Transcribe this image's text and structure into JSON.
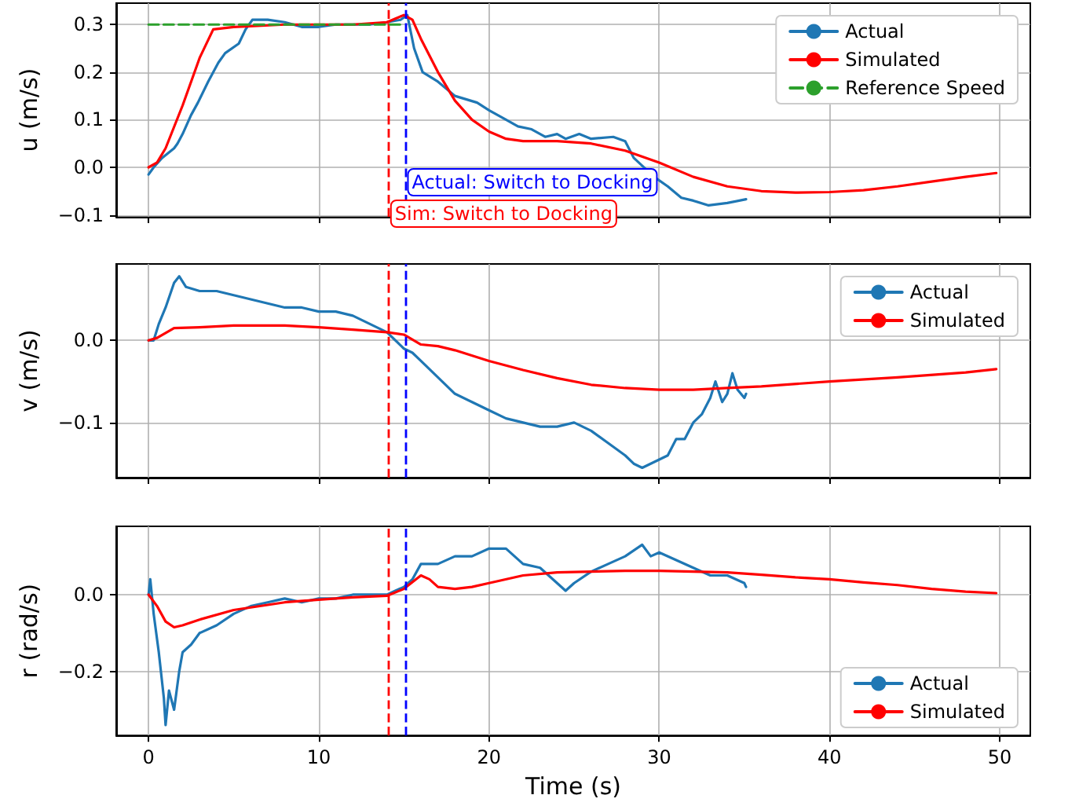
{
  "chart_data": [
    {
      "type": "line",
      "ylabel": "u (m/s)",
      "xlim": [
        -1.9,
        51.8
      ],
      "xticks": [
        0,
        10,
        20,
        30,
        40,
        50
      ],
      "ylim": [
        -0.104,
        0.345
      ],
      "yticks": [
        {
          "value": -0.1,
          "label": "−0.1"
        },
        {
          "value": 0,
          "label": "0.0"
        },
        {
          "value": 0.1,
          "label": "0.1"
        },
        {
          "value": 0.2,
          "label": "0.2"
        },
        {
          "value": 0.3,
          "label": "0.3"
        }
      ],
      "grid": true,
      "legend": "top right",
      "tick_labels": "y",
      "series": [
        {
          "name": "Actual",
          "color": "#1f77b4",
          "x": [
            0,
            0.3,
            0.8,
            1.5,
            1.7,
            2,
            2.5,
            2.9,
            3.5,
            4.1,
            4.5,
            5.3,
            5.7,
            6.1,
            7,
            8,
            9,
            10,
            11,
            12,
            13,
            14,
            14.8,
            15.2,
            15.6,
            16.1,
            17,
            18,
            19.3,
            20,
            21,
            21.7,
            22.5,
            23.3,
            24,
            24.5,
            25.3,
            26,
            27.3,
            28,
            28.5,
            29.7,
            30.5,
            31.3,
            32,
            32.9,
            34,
            35.1
          ],
          "values": [
            -0.015,
            0.0,
            0.02,
            0.04,
            0.05,
            0.07,
            0.11,
            0.136,
            0.18,
            0.22,
            0.24,
            0.26,
            0.29,
            0.31,
            0.31,
            0.305,
            0.295,
            0.295,
            0.3,
            0.3,
            0.3,
            0.305,
            0.31,
            0.32,
            0.25,
            0.2,
            0.18,
            0.15,
            0.136,
            0.12,
            0.1,
            0.086,
            0.08,
            0.064,
            0.07,
            0.06,
            0.07,
            0.06,
            0.064,
            0.055,
            0.02,
            -0.02,
            -0.04,
            -0.064,
            -0.07,
            -0.08,
            -0.075,
            -0.067
          ]
        },
        {
          "name": "Simulated",
          "color": "#ff0000",
          "x": [
            0,
            0.5,
            1,
            2,
            3,
            3.8,
            5,
            8,
            12,
            14,
            15,
            15.5,
            16,
            17,
            18,
            19,
            20,
            21,
            22,
            24,
            26,
            28,
            30,
            32,
            34,
            36,
            38,
            40,
            42,
            44,
            46,
            48,
            49.8
          ],
          "values": [
            0,
            0.01,
            0.04,
            0.13,
            0.23,
            0.29,
            0.295,
            0.3,
            0.3,
            0.305,
            0.32,
            0.31,
            0.27,
            0.2,
            0.14,
            0.1,
            0.075,
            0.06,
            0.055,
            0.055,
            0.05,
            0.035,
            0.01,
            -0.02,
            -0.04,
            -0.05,
            -0.053,
            -0.052,
            -0.048,
            -0.04,
            -0.03,
            -0.02,
            -0.012
          ]
        },
        {
          "name": "Reference Speed",
          "color": "#2ca02c",
          "line_style": "dashed",
          "x": [
            0,
            15
          ],
          "values": [
            0.3,
            0.3
          ]
        }
      ],
      "ref_lines": [
        {
          "axis": "x",
          "value": 14.1,
          "label": "Sim: Switch to Docking",
          "color": "#ff0000",
          "line_style": "dashed"
        },
        {
          "axis": "x",
          "value": 15.1,
          "label": "Actual: Switch to Docking",
          "color": "#0000ff",
          "line_style": "dashed"
        }
      ]
    },
    {
      "type": "line",
      "ylabel": "v (m/s)",
      "xlim": [
        -1.9,
        51.8
      ],
      "xticks": [
        0,
        10,
        20,
        30,
        40,
        50
      ],
      "ylim": [
        -0.167,
        0.093
      ],
      "yticks": [
        {
          "value": -0.1,
          "label": "−0.1"
        },
        {
          "value": 0,
          "label": "0.0"
        }
      ],
      "grid": true,
      "legend": "top right",
      "tick_labels": "y",
      "series": [
        {
          "name": "Actual",
          "color": "#1f77b4",
          "x": [
            0,
            0.3,
            0.6,
            1,
            1.5,
            1.8,
            2.2,
            3,
            4,
            5,
            6,
            7,
            8,
            9,
            10,
            11,
            12,
            13,
            14,
            15,
            15.5,
            16,
            17,
            18,
            19,
            20,
            21,
            22,
            23,
            24,
            25,
            26,
            27,
            28,
            28.5,
            29,
            30,
            30.5,
            31,
            31.5,
            32,
            32.5,
            33,
            33.3,
            33.7,
            34,
            34.3,
            34.6,
            35,
            35.1
          ],
          "values": [
            0,
            0.0,
            0.02,
            0.04,
            0.07,
            0.078,
            0.065,
            0.06,
            0.06,
            0.055,
            0.05,
            0.045,
            0.04,
            0.04,
            0.035,
            0.035,
            0.03,
            0.02,
            0.01,
            -0.01,
            -0.015,
            -0.025,
            -0.045,
            -0.065,
            -0.075,
            -0.085,
            -0.095,
            -0.1,
            -0.105,
            -0.105,
            -0.1,
            -0.11,
            -0.125,
            -0.14,
            -0.15,
            -0.155,
            -0.145,
            -0.14,
            -0.12,
            -0.12,
            -0.1,
            -0.09,
            -0.07,
            -0.05,
            -0.075,
            -0.065,
            -0.04,
            -0.06,
            -0.07,
            -0.065
          ]
        },
        {
          "name": "Simulated",
          "color": "#ff0000",
          "x": [
            0,
            0.5,
            1.5,
            3,
            5,
            8,
            10,
            12,
            14,
            15,
            16,
            17,
            18,
            20,
            22,
            24,
            26,
            28,
            30,
            32,
            34,
            36,
            40,
            44,
            48,
            49.8
          ],
          "values": [
            0,
            0.003,
            0.015,
            0.016,
            0.018,
            0.018,
            0.016,
            0.013,
            0.01,
            0.007,
            -0.005,
            -0.007,
            -0.012,
            -0.025,
            -0.036,
            -0.046,
            -0.054,
            -0.058,
            -0.06,
            -0.06,
            -0.058,
            -0.056,
            -0.05,
            -0.045,
            -0.039,
            -0.035
          ]
        }
      ],
      "ref_lines": [
        {
          "axis": "x",
          "value": 14.1,
          "color": "#ff0000",
          "line_style": "dashed"
        },
        {
          "axis": "x",
          "value": 15.1,
          "color": "#0000ff",
          "line_style": "dashed"
        }
      ]
    },
    {
      "type": "line",
      "ylabel": "r (rad/s)",
      "xlabel": "Time (s)",
      "xlim": [
        -1.9,
        51.8
      ],
      "xticks": [
        0,
        10,
        20,
        30,
        40,
        50
      ],
      "ylim": [
        -0.367,
        0.178
      ],
      "yticks": [
        {
          "value": -0.2,
          "label": "−0.2"
        },
        {
          "value": 0,
          "label": "0.0"
        }
      ],
      "grid": true,
      "legend": "bottom right",
      "series": [
        {
          "name": "Actual",
          "color": "#1f77b4",
          "x": [
            0,
            0.1,
            0.3,
            0.6,
            0.9,
            1.0,
            1.2,
            1.5,
            1.8,
            2,
            2.5,
            3,
            4,
            5,
            6,
            7,
            8,
            9,
            10,
            11,
            12,
            13,
            14,
            14.5,
            15,
            15.5,
            16,
            17,
            18,
            19,
            20,
            21,
            22,
            23,
            24,
            24.5,
            25,
            26,
            27,
            28,
            29,
            29.5,
            30,
            31,
            32,
            33,
            34,
            35,
            35.1
          ],
          "values": [
            0,
            0.04,
            -0.05,
            -0.15,
            -0.27,
            -0.34,
            -0.25,
            -0.3,
            -0.2,
            -0.15,
            -0.13,
            -0.1,
            -0.08,
            -0.05,
            -0.03,
            -0.02,
            -0.01,
            -0.02,
            -0.01,
            -0.01,
            0.0,
            0.0,
            0.0,
            0.01,
            0.02,
            0.04,
            0.08,
            0.08,
            0.1,
            0.1,
            0.12,
            0.12,
            0.08,
            0.07,
            0.03,
            0.01,
            0.03,
            0.06,
            0.08,
            0.1,
            0.13,
            0.1,
            0.11,
            0.09,
            0.07,
            0.05,
            0.05,
            0.03,
            0.02
          ]
        },
        {
          "name": "Simulated",
          "color": "#ff0000",
          "x": [
            0,
            0.5,
            1,
            1.5,
            2,
            3,
            5,
            8,
            10,
            12,
            14,
            15,
            16,
            16.5,
            17,
            18,
            19,
            20,
            22,
            24,
            26,
            28,
            30,
            32,
            34,
            36,
            38,
            40,
            42,
            44,
            46,
            48,
            49.8
          ],
          "values": [
            0,
            -0.03,
            -0.07,
            -0.085,
            -0.08,
            -0.065,
            -0.04,
            -0.02,
            -0.013,
            -0.007,
            -0.003,
            0.015,
            0.05,
            0.04,
            0.02,
            0.015,
            0.02,
            0.03,
            0.05,
            0.058,
            0.06,
            0.062,
            0.062,
            0.06,
            0.058,
            0.052,
            0.045,
            0.04,
            0.032,
            0.025,
            0.015,
            0.008,
            0.004
          ]
        }
      ],
      "ref_lines": [
        {
          "axis": "x",
          "value": 14.1,
          "color": "#ff0000",
          "line_style": "dashed"
        },
        {
          "axis": "x",
          "value": 15.1,
          "color": "#0000ff",
          "line_style": "dashed"
        }
      ]
    }
  ]
}
